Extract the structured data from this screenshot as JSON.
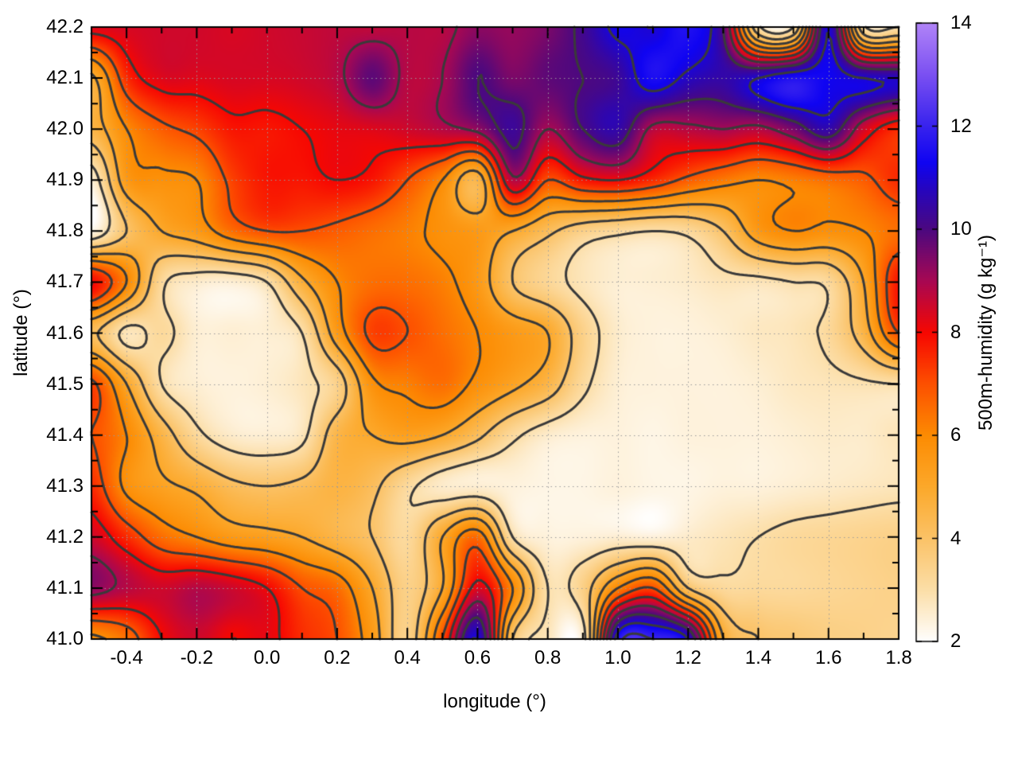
{
  "figure": {
    "background": "#ffffff"
  },
  "chart_data": {
    "type": "heatmap",
    "xlabel": "longitude (°)",
    "ylabel": "latitude (°)",
    "colorbar_label": "500m-humidity (g kg⁻¹)",
    "x_range": [
      -0.5,
      1.8
    ],
    "y_range": [
      41.0,
      42.2
    ],
    "z_range": [
      2,
      14
    ],
    "x_tick_labels": [
      "-0.4",
      "-0.2",
      "0.0",
      "0.2",
      "0.4",
      "0.6",
      "0.8",
      "1.0",
      "1.2",
      "1.4",
      "1.6",
      "1.8"
    ],
    "x_tick_values": [
      -0.4,
      -0.2,
      0.0,
      0.2,
      0.4,
      0.6,
      0.8,
      1.0,
      1.2,
      1.4,
      1.6,
      1.8
    ],
    "x_minor_step": 0.1,
    "y_tick_labels": [
      "41.0",
      "41.1",
      "41.2",
      "41.3",
      "41.4",
      "41.5",
      "41.6",
      "41.7",
      "41.8",
      "41.9",
      "42.0",
      "42.1",
      "42.2"
    ],
    "y_tick_values": [
      41.0,
      41.1,
      41.2,
      41.3,
      41.4,
      41.5,
      41.6,
      41.7,
      41.8,
      41.9,
      42.0,
      42.1,
      42.2
    ],
    "y_minor_step": 0.05,
    "colorbar_tick_labels": [
      "2",
      "4",
      "6",
      "8",
      "10",
      "12",
      "14"
    ],
    "colorbar_tick_values": [
      2,
      4,
      6,
      8,
      10,
      12,
      14
    ],
    "grid": {
      "lon_start": -0.5,
      "lon_step": 0.1,
      "ncols": 24,
      "lat_start": 42.2,
      "lat_step": -0.1,
      "nrows": 13
    },
    "values": [
      [
        8.3,
        8.4,
        8.5,
        8.5,
        8.4,
        8.5,
        8.6,
        8.7,
        8.7,
        8.8,
        8.8,
        9.3,
        9.2,
        9.5,
        10.2,
        11.2,
        11.0,
        11.6,
        10.0,
        3.2,
        3.0,
        11.0,
        3.2,
        3.0
      ],
      [
        4.8,
        7.5,
        8.3,
        8.3,
        8.4,
        8.4,
        8.5,
        8.8,
        9.8,
        8.8,
        9.0,
        10.0,
        9.5,
        9.8,
        10.0,
        10.3,
        11.5,
        10.8,
        10.5,
        11.0,
        11.6,
        11.3,
        11.0,
        10.8
      ],
      [
        4.5,
        6.0,
        6.8,
        7.2,
        7.8,
        7.8,
        8.0,
        8.2,
        8.3,
        8.5,
        8.8,
        9.2,
        10.3,
        9.0,
        10.0,
        10.5,
        8.8,
        8.8,
        9.0,
        8.8,
        9.5,
        10.5,
        8.5,
        7.5
      ],
      [
        2.5,
        5.5,
        5.8,
        6.0,
        7.2,
        7.8,
        7.8,
        8.0,
        7.8,
        7.0,
        6.0,
        4.5,
        8.8,
        7.0,
        7.8,
        8.0,
        7.5,
        6.8,
        6.3,
        6.0,
        6.2,
        6.5,
        6.8,
        7.5
      ],
      [
        2.3,
        4.0,
        5.0,
        5.5,
        6.5,
        7.0,
        7.0,
        6.8,
        6.5,
        6.2,
        5.8,
        5.5,
        5.0,
        4.2,
        3.5,
        3.2,
        3.0,
        3.2,
        4.0,
        5.5,
        6.0,
        5.8,
        6.0,
        6.5
      ],
      [
        8.0,
        6.0,
        3.2,
        2.6,
        2.5,
        3.0,
        4.8,
        6.0,
        6.5,
        6.5,
        6.2,
        5.5,
        4.0,
        3.3,
        2.8,
        2.5,
        2.5,
        2.6,
        2.8,
        2.8,
        3.0,
        3.2,
        5.0,
        7.8
      ],
      [
        4.2,
        2.8,
        3.2,
        2.5,
        2.5,
        2.5,
        3.0,
        5.5,
        7.2,
        7.0,
        6.5,
        6.0,
        5.5,
        5.0,
        3.5,
        2.6,
        2.4,
        2.4,
        2.5,
        2.7,
        2.8,
        3.2,
        4.5,
        7.0
      ],
      [
        7.2,
        5.0,
        3.0,
        2.5,
        2.4,
        2.5,
        2.8,
        3.5,
        5.8,
        6.2,
        6.5,
        5.8,
        5.2,
        4.5,
        3.2,
        2.5,
        2.4,
        2.4,
        2.4,
        2.5,
        2.7,
        2.8,
        2.9,
        3.0
      ],
      [
        7.0,
        6.0,
        4.5,
        3.2,
        2.6,
        2.5,
        2.8,
        4.5,
        5.0,
        5.3,
        5.0,
        4.2,
        3.2,
        2.6,
        2.4,
        2.4,
        2.3,
        2.4,
        2.4,
        2.4,
        2.5,
        2.6,
        2.6,
        2.8
      ],
      [
        7.5,
        5.8,
        5.2,
        4.8,
        4.2,
        4.0,
        4.2,
        4.6,
        4.2,
        3.2,
        2.6,
        2.5,
        2.4,
        2.3,
        2.3,
        2.4,
        2.3,
        2.3,
        2.4,
        2.4,
        2.5,
        2.6,
        2.7,
        2.8
      ],
      [
        8.5,
        7.5,
        6.5,
        6.0,
        5.5,
        5.3,
        5.0,
        4.5,
        4.0,
        3.2,
        5.0,
        6.5,
        3.0,
        2.4,
        2.4,
        2.5,
        2.4,
        2.6,
        2.8,
        3.0,
        3.2,
        3.3,
        3.4,
        3.5
      ],
      [
        9.3,
        8.8,
        8.5,
        8.8,
        8.5,
        8.0,
        7.0,
        6.5,
        5.0,
        3.5,
        5.0,
        8.3,
        6.0,
        3.0,
        3.5,
        6.0,
        7.0,
        4.0,
        3.2,
        3.2,
        3.2,
        3.3,
        3.4,
        3.5
      ],
      [
        5.8,
        6.5,
        8.0,
        8.5,
        8.0,
        8.2,
        7.5,
        7.0,
        5.5,
        3.5,
        7.0,
        11.0,
        4.0,
        2.8,
        2.6,
        11.5,
        12.0,
        11.0,
        5.0,
        4.0,
        3.8,
        3.6,
        3.5,
        3.4
      ]
    ],
    "palette": [
      {
        "v": 2.0,
        "c": "#ffffff"
      },
      {
        "v": 3.0,
        "c": "#fcdfa9"
      },
      {
        "v": 4.0,
        "c": "#fbc368"
      },
      {
        "v": 5.0,
        "c": "#fca92b"
      },
      {
        "v": 6.0,
        "c": "#fc8c03"
      },
      {
        "v": 7.0,
        "c": "#fd5100"
      },
      {
        "v": 8.0,
        "c": "#f70702"
      },
      {
        "v": 9.0,
        "c": "#a80853"
      },
      {
        "v": 10.0,
        "c": "#4c0880"
      },
      {
        "v": 10.7,
        "c": "#2a06b8"
      },
      {
        "v": 11.3,
        "c": "#1004f2"
      },
      {
        "v": 12.0,
        "c": "#3823ee"
      },
      {
        "v": 13.0,
        "c": "#7b50f2"
      },
      {
        "v": 14.0,
        "c": "#b184f8"
      }
    ],
    "contour_levels": [
      3,
      4,
      5,
      6,
      7,
      8,
      9,
      10,
      11,
      12
    ],
    "contour_color": "#3a3a3a",
    "grid_color": "#9a9a9a",
    "axis_color": "#000000",
    "legend_position": "right-colorbar",
    "grid_on": true
  }
}
